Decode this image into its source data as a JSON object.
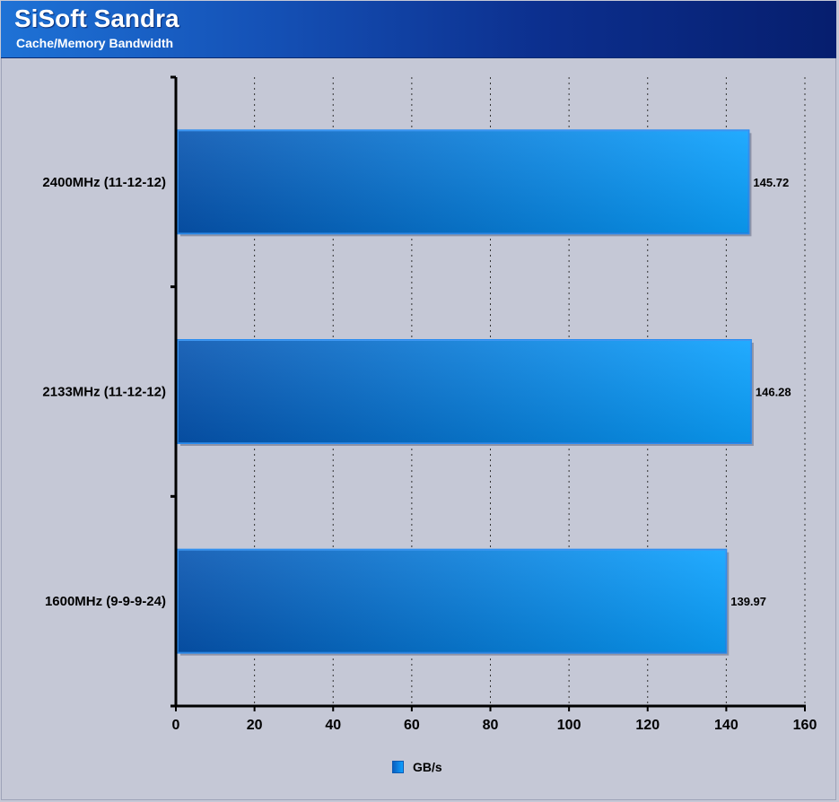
{
  "header": {
    "title": "SiSoft Sandra",
    "subtitle": "Cache/Memory Bandwidth"
  },
  "chart_data": {
    "type": "bar",
    "orientation": "horizontal",
    "categories": [
      "2400MHz (11-12-12)",
      "2133MHz (11-12-12)",
      "1600MHz (9-9-9-24)"
    ],
    "series": [
      {
        "name": "GB/s",
        "values": [
          145.72,
          146.28,
          139.97
        ]
      }
    ],
    "value_labels": [
      "145.72",
      "146.28",
      "139.97"
    ],
    "xlim": [
      0,
      160
    ],
    "xticks": [
      0,
      20,
      40,
      60,
      80,
      100,
      120,
      140,
      160
    ],
    "grid": true,
    "grid_style": "dotted-vertical",
    "legend_position": "bottom-center",
    "colors": {
      "bar_dark": "#0654b0",
      "bar_light": "#0aa2ff",
      "background": "#c5c8d6"
    }
  },
  "legend": {
    "label": "GB/s"
  }
}
